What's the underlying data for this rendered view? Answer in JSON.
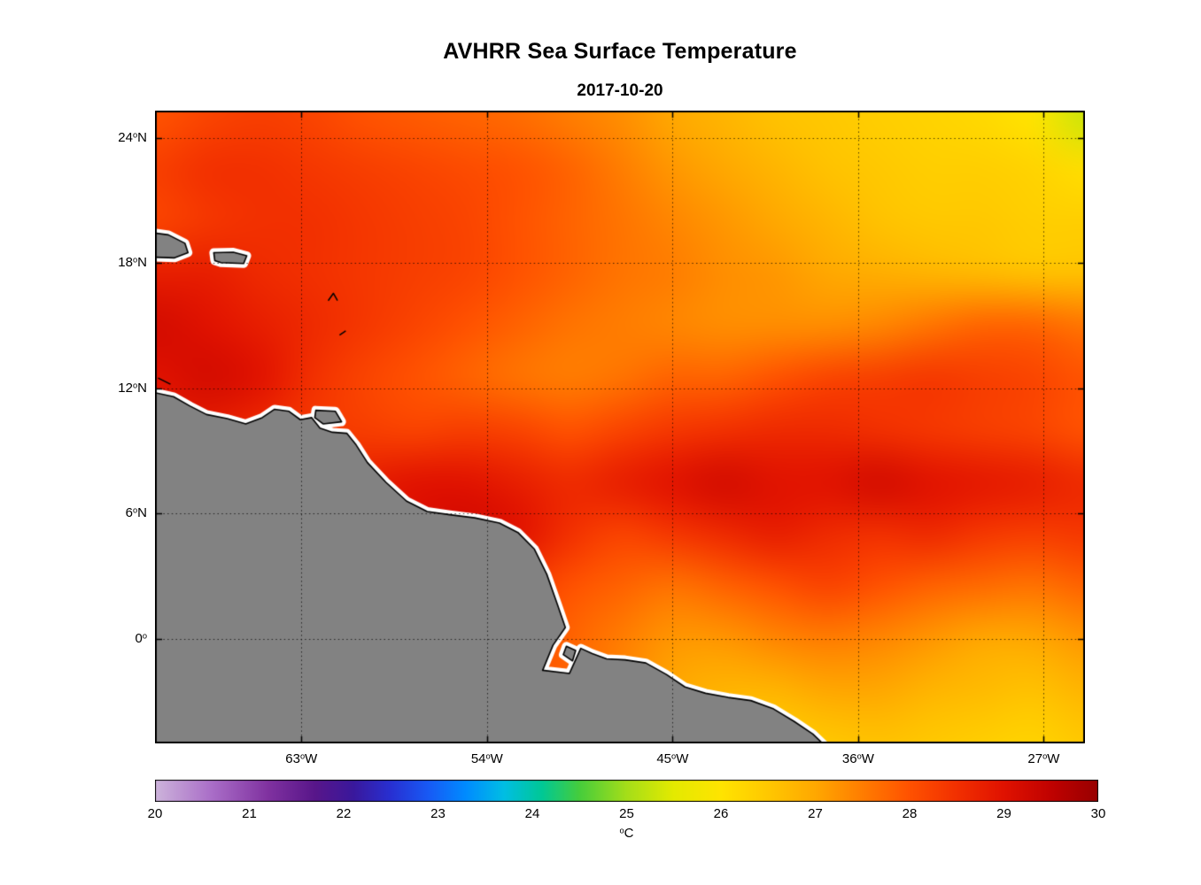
{
  "title": "AVHRR Sea Surface Temperature",
  "subtitle": "2017-10-20",
  "colorbar": {
    "unit_sup": "o",
    "unit_text": "C",
    "ticks": [
      20,
      21,
      22,
      23,
      24,
      25,
      26,
      27,
      28,
      29,
      30
    ],
    "min": 20,
    "max": 30
  },
  "axes": {
    "lat_ticks": [
      {
        "value": 24,
        "num": "24",
        "deg": "o",
        "hem": "N"
      },
      {
        "value": 18,
        "num": "18",
        "deg": "o",
        "hem": "N"
      },
      {
        "value": 12,
        "num": "12",
        "deg": "o",
        "hem": "N"
      },
      {
        "value": 6,
        "num": "6",
        "deg": "o",
        "hem": "N"
      },
      {
        "value": 0,
        "num": "0",
        "deg": "o",
        "hem": ""
      }
    ],
    "lon_ticks": [
      {
        "value": -63,
        "num": "63",
        "deg": "o",
        "hem": "W"
      },
      {
        "value": -54,
        "num": "54",
        "deg": "o",
        "hem": "W"
      },
      {
        "value": -45,
        "num": "45",
        "deg": "o",
        "hem": "W"
      },
      {
        "value": -36,
        "num": "36",
        "deg": "o",
        "hem": "W"
      },
      {
        "value": -27,
        "num": "27",
        "deg": "o",
        "hem": "W"
      }
    ]
  },
  "chart_data": {
    "type": "heatmap",
    "title": "AVHRR Sea Surface Temperature",
    "subtitle": "2017-10-20",
    "units": "°C",
    "lon_range": [
      -70.1,
      -25.0
    ],
    "lat_range": [
      -5.0,
      25.3
    ],
    "colorbar_range": [
      20,
      30
    ],
    "grid_on": true,
    "legend_position": "bottom-colorbar",
    "grid_lon": [
      -70,
      -67.5,
      -65,
      -62.5,
      -60,
      -57.5,
      -55,
      -52.5,
      -50,
      -47.5,
      -45,
      -42.5,
      -40,
      -37.5,
      -35,
      -32.5,
      -30,
      -27.5,
      -25
    ],
    "grid_lat": [
      25,
      22.5,
      20,
      17.5,
      15,
      12.5,
      10,
      7.5,
      5,
      2.5,
      0,
      -2.5,
      -5
    ],
    "sst": [
      [
        28.0,
        28.2,
        28.3,
        28.2,
        28.0,
        27.9,
        27.8,
        27.7,
        27.5,
        27.3,
        27.0,
        26.8,
        26.6,
        26.5,
        26.4,
        26.3,
        26.2,
        26.0,
        25.3
      ],
      [
        28.3,
        28.5,
        28.5,
        28.4,
        28.3,
        28.2,
        28.1,
        28.0,
        27.8,
        27.5,
        27.2,
        27.0,
        26.8,
        26.6,
        26.5,
        26.4,
        26.4,
        26.3,
        26.1
      ],
      [
        28.2,
        28.4,
        28.5,
        28.5,
        28.4,
        28.3,
        28.2,
        28.0,
        27.8,
        27.6,
        27.4,
        27.2,
        27.0,
        26.8,
        26.6,
        26.5,
        26.5,
        26.4,
        26.4
      ],
      [
        28.8,
        28.8,
        28.6,
        28.5,
        28.4,
        28.3,
        28.2,
        28.0,
        27.8,
        27.6,
        27.5,
        27.3,
        27.2,
        27.0,
        26.9,
        26.8,
        26.7,
        26.6,
        26.6
      ],
      [
        29.2,
        29.0,
        28.8,
        28.6,
        28.4,
        28.2,
        28.0,
        27.8,
        27.6,
        27.5,
        27.4,
        27.3,
        27.3,
        27.3,
        27.4,
        27.6,
        27.8,
        27.8,
        27.6
      ],
      [
        29.0,
        29.2,
        29.0,
        28.5,
        28.2,
        28.0,
        27.8,
        27.6,
        27.5,
        27.6,
        27.8,
        27.8,
        28.0,
        28.2,
        28.3,
        28.4,
        28.3,
        28.2,
        28.0
      ],
      [
        28.8,
        28.8,
        28.6,
        28.4,
        28.3,
        28.2,
        28.3,
        28.2,
        28.0,
        28.2,
        28.4,
        28.5,
        28.6,
        28.6,
        28.5,
        28.4,
        28.3,
        28.2,
        28.0
      ],
      [
        28.5,
        28.5,
        28.5,
        28.6,
        28.8,
        29.0,
        29.0,
        28.8,
        28.6,
        28.8,
        29.0,
        29.2,
        29.0,
        29.0,
        29.2,
        29.0,
        28.9,
        28.8,
        28.6
      ],
      [
        28.4,
        28.4,
        28.5,
        28.6,
        28.8,
        29.0,
        29.2,
        29.0,
        28.5,
        28.2,
        28.4,
        28.6,
        28.8,
        28.6,
        28.5,
        28.6,
        28.4,
        28.3,
        28.4
      ],
      [
        28.4,
        28.4,
        28.4,
        28.5,
        28.6,
        28.8,
        28.8,
        28.4,
        28.0,
        27.8,
        27.6,
        27.8,
        28.0,
        28.2,
        28.0,
        27.8,
        27.7,
        27.6,
        27.8
      ],
      [
        28.3,
        28.3,
        28.4,
        28.4,
        28.5,
        28.6,
        28.4,
        28.2,
        27.8,
        27.5,
        27.2,
        27.2,
        27.4,
        27.5,
        27.4,
        27.2,
        27.0,
        27.0,
        27.2
      ],
      [
        28.2,
        28.2,
        28.3,
        28.3,
        28.4,
        28.4,
        28.2,
        28.0,
        27.8,
        27.4,
        27.0,
        26.8,
        26.8,
        27.0,
        27.0,
        26.8,
        26.7,
        26.6,
        26.8
      ],
      [
        28.0,
        28.0,
        28.2,
        28.2,
        28.3,
        28.3,
        28.2,
        28.0,
        27.8,
        27.4,
        27.0,
        26.6,
        26.4,
        26.5,
        26.6,
        26.5,
        26.4,
        26.3,
        26.5
      ]
    ],
    "colormap_stops": [
      [
        0.0,
        [
          205,
          180,
          219
        ]
      ],
      [
        0.06,
        [
          170,
          110,
          200
        ]
      ],
      [
        0.12,
        [
          128,
          50,
          160
        ]
      ],
      [
        0.17,
        [
          88,
          22,
          138
        ]
      ],
      [
        0.21,
        [
          58,
          24,
          156
        ]
      ],
      [
        0.25,
        [
          40,
          48,
          210
        ]
      ],
      [
        0.29,
        [
          24,
          90,
          245
        ]
      ],
      [
        0.33,
        [
          0,
          140,
          255
        ]
      ],
      [
        0.37,
        [
          0,
          190,
          228
        ]
      ],
      [
        0.41,
        [
          0,
          200,
          150
        ]
      ],
      [
        0.45,
        [
          70,
          205,
          60
        ]
      ],
      [
        0.5,
        [
          165,
          222,
          25
        ]
      ],
      [
        0.55,
        [
          228,
          234,
          0
        ]
      ],
      [
        0.6,
        [
          255,
          228,
          0
        ]
      ],
      [
        0.65,
        [
          255,
          200,
          0
        ]
      ],
      [
        0.7,
        [
          255,
          168,
          0
        ]
      ],
      [
        0.75,
        [
          255,
          125,
          0
        ]
      ],
      [
        0.8,
        [
          255,
          82,
          0
        ]
      ],
      [
        0.85,
        [
          242,
          48,
          0
        ]
      ],
      [
        0.9,
        [
          224,
          18,
          0
        ]
      ],
      [
        0.95,
        [
          192,
          2,
          0
        ]
      ],
      [
        1.0,
        [
          152,
          0,
          0
        ]
      ]
    ],
    "land_color": "#828282",
    "coast_fringe_color": "#ffffff",
    "coast_line_color": "#000000",
    "grid_line_color": "rgba(0,0,0,0.7)",
    "land_polygons": [
      [
        [
          -70.6,
          11.9
        ],
        [
          -69.2,
          11.6
        ],
        [
          -68.4,
          11.15
        ],
        [
          -67.6,
          10.75
        ],
        [
          -66.6,
          10.55
        ],
        [
          -65.7,
          10.3
        ],
        [
          -64.9,
          10.6
        ],
        [
          -64.3,
          11.0
        ],
        [
          -63.6,
          10.9
        ],
        [
          -63.05,
          10.5
        ],
        [
          -62.5,
          10.6
        ],
        [
          -62.1,
          10.1
        ],
        [
          -61.5,
          9.9
        ],
        [
          -60.8,
          9.85
        ],
        [
          -60.35,
          9.3
        ],
        [
          -59.8,
          8.45
        ],
        [
          -58.9,
          7.5
        ],
        [
          -57.9,
          6.6
        ],
        [
          -56.9,
          6.1
        ],
        [
          -55.8,
          5.95
        ],
        [
          -54.6,
          5.8
        ],
        [
          -53.4,
          5.55
        ],
        [
          -52.5,
          5.1
        ],
        [
          -51.7,
          4.3
        ],
        [
          -51.1,
          3.1
        ],
        [
          -50.6,
          1.7
        ],
        [
          -50.2,
          0.55
        ],
        [
          -50.8,
          -0.3
        ],
        [
          -51.3,
          -1.5
        ],
        [
          -50.0,
          -1.65
        ],
        [
          -49.45,
          -0.45
        ],
        [
          -48.9,
          -0.7
        ],
        [
          -48.2,
          -0.95
        ],
        [
          -47.3,
          -1.0
        ],
        [
          -46.3,
          -1.15
        ],
        [
          -45.3,
          -1.7
        ],
        [
          -44.4,
          -2.3
        ],
        [
          -43.4,
          -2.6
        ],
        [
          -42.3,
          -2.8
        ],
        [
          -41.2,
          -2.95
        ],
        [
          -40.1,
          -3.35
        ],
        [
          -39.1,
          -3.95
        ],
        [
          -38.2,
          -4.55
        ],
        [
          -37.3,
          -5.4
        ],
        [
          -70.6,
          -5.4
        ]
      ],
      [
        [
          -50.15,
          -0.35
        ],
        [
          -49.7,
          -0.55
        ],
        [
          -49.85,
          -1.05
        ],
        [
          -50.3,
          -0.75
        ]
      ],
      [
        [
          -70.6,
          19.5
        ],
        [
          -69.45,
          19.35
        ],
        [
          -68.65,
          18.95
        ],
        [
          -68.5,
          18.5
        ],
        [
          -69.15,
          18.25
        ],
        [
          -70.6,
          18.3
        ]
      ],
      [
        [
          -67.25,
          18.5
        ],
        [
          -66.3,
          18.52
        ],
        [
          -65.65,
          18.35
        ],
        [
          -65.8,
          17.98
        ],
        [
          -66.9,
          18.02
        ],
        [
          -67.2,
          18.12
        ]
      ],
      [
        [
          -62.3,
          10.95
        ],
        [
          -61.35,
          10.9
        ],
        [
          -61.05,
          10.4
        ],
        [
          -61.95,
          10.3
        ],
        [
          -62.35,
          10.6
        ]
      ]
    ],
    "islands_small": [
      [
        [
          -61.7,
          16.2
        ],
        [
          -61.45,
          16.55
        ],
        [
          -61.25,
          16.2
        ]
      ],
      [
        [
          -61.15,
          14.55
        ],
        [
          -60.85,
          14.75
        ]
      ],
      [
        [
          -69.95,
          12.5
        ],
        [
          -69.35,
          12.2
        ]
      ]
    ]
  }
}
